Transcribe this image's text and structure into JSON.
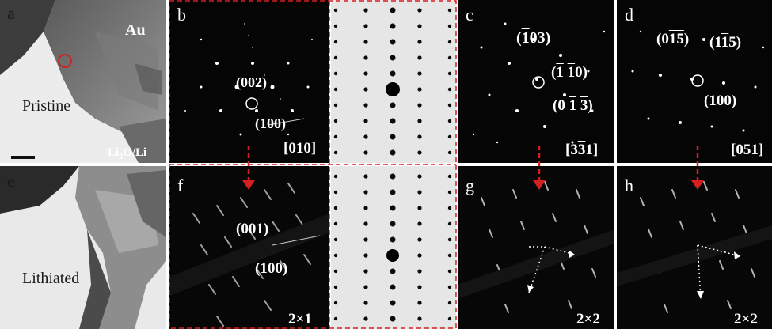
{
  "panel_labels": {
    "a": "a",
    "b": "b",
    "c": "c",
    "d": "d",
    "e": "e",
    "f": "f",
    "g": "g",
    "h": "h"
  },
  "panel_a": {
    "metal": "Au",
    "state": "Pristine",
    "substrate_main": "Li",
    "substrate_sub": "2",
    "substrate_rest": "O/Li"
  },
  "panel_e": {
    "state": "Lithiated"
  },
  "panel_b": {
    "zone_axis": "[010]",
    "spot_002": "(002)",
    "spot_100": "(100)"
  },
  "panel_c": {
    "zone_axis_pre": "[3",
    "zone_axis_bar": "3",
    "zone_axis_post": "1]",
    "spot1_pre": "(",
    "spot1_bar": "1",
    "spot1_post": "03)",
    "spot2_pre": "(",
    "spot2_bar1": "1",
    "spot2_mid": " ",
    "spot2_bar2": "1",
    "spot2_post": "0)",
    "spot3_pre": "(0 ",
    "spot3_bar1": "1",
    "spot3_mid": " ",
    "spot3_bar2": "3",
    "spot3_post": ")"
  },
  "panel_d": {
    "zone_axis": "[051]",
    "spot1_pre": "(0",
    "spot1_bar": "15",
    "spot1_post": ")",
    "spot2_pre": "(1",
    "spot2_bar": "1",
    "spot2_post": "5)",
    "spot3": "(100)"
  },
  "panel_f": {
    "spot_001": "(001)",
    "spot_100": "(100)",
    "superstructure": "2×1"
  },
  "panel_g": {
    "superstructure": "2×2"
  },
  "panel_h": {
    "superstructure": "2×2"
  },
  "colors": {
    "marker_circle": "#d42020",
    "arrow": "#d42020",
    "dash_frame": "#d42020",
    "tem_background": "#e9e9e9",
    "pattern_background": "#050505",
    "sim_background": "#e6e6e6"
  }
}
